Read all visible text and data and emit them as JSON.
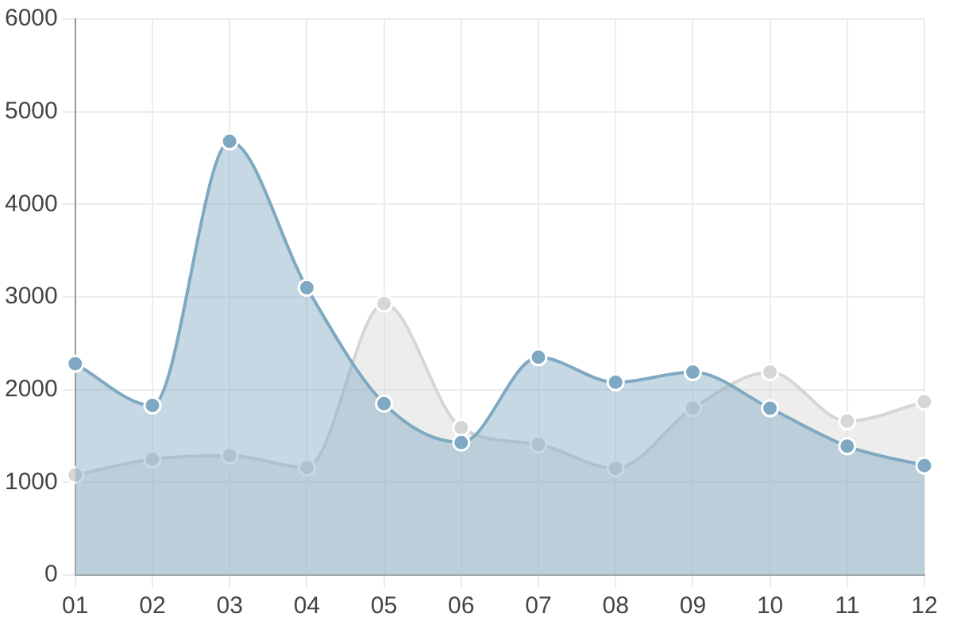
{
  "chart_data": {
    "type": "area",
    "categories": [
      "01",
      "02",
      "03",
      "04",
      "05",
      "06",
      "07",
      "08",
      "09",
      "10",
      "11",
      "12"
    ],
    "series": [
      {
        "color": "#7fa9c2",
        "values": [
          2280,
          1830,
          4680,
          3100,
          1850,
          1430,
          2350,
          2080,
          2190,
          1800,
          1390,
          1180
        ]
      },
      {
        "color": "#d6d6d6",
        "values": [
          1080,
          1250,
          1290,
          1160,
          2930,
          1590,
          1410,
          1150,
          1800,
          2190,
          1660,
          1870
        ]
      }
    ],
    "ylim": [
      0,
      6000
    ],
    "yticks": [
      0,
      1000,
      2000,
      3000,
      4000,
      5000,
      6000
    ],
    "grid": true,
    "marker": "circle"
  }
}
